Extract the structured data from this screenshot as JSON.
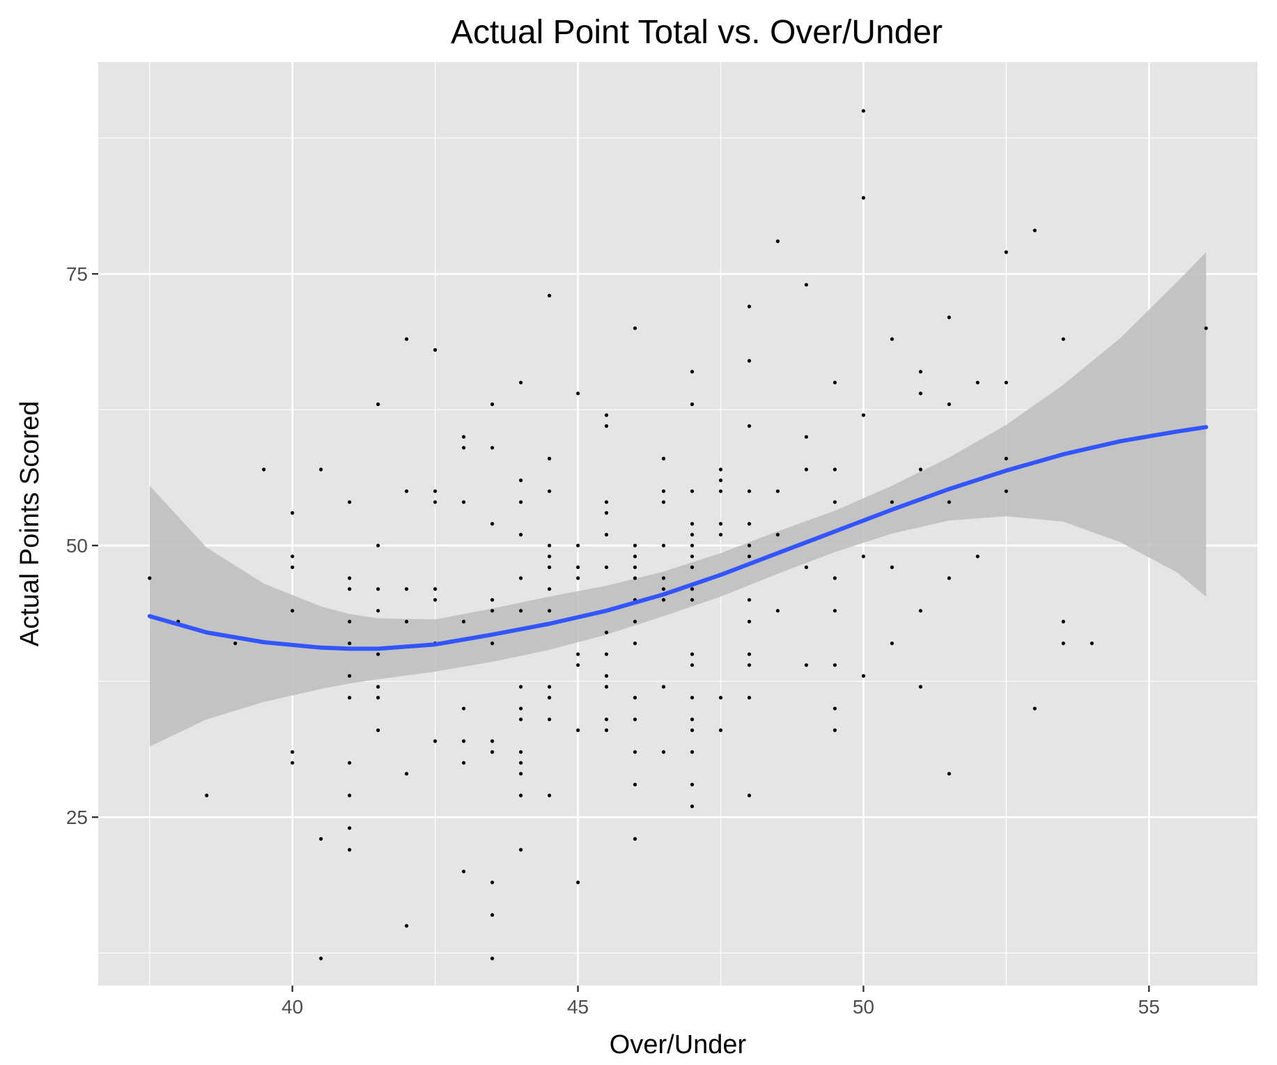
{
  "chart_data": {
    "type": "scatter",
    "title": "Actual Point Total vs. Over/Under",
    "xlabel": "Over/Under",
    "ylabel": "Actual Points Scored",
    "xlim": [
      36.6,
      56.9
    ],
    "ylim": [
      9.5,
      94.5
    ],
    "x_ticks": [
      40,
      45,
      50,
      55
    ],
    "y_ticks": [
      25,
      50,
      75
    ],
    "x_tick_labels": [
      "40",
      "45",
      "50",
      "55"
    ],
    "y_tick_labels": [
      "25",
      "50",
      "75"
    ],
    "x_minor_ticks": [
      37.5,
      42.5,
      47.5,
      52.5
    ],
    "y_minor_ticks": [
      12.5,
      37.5,
      62.5,
      87.5
    ],
    "grid": true,
    "colors": {
      "panel_background": "#e5e5e5",
      "grid": "#ffffff",
      "points": "#000000",
      "smooth_line": "#3355ff",
      "confidence_band": "#bdbdbd"
    },
    "points": [
      [
        37.5,
        47
      ],
      [
        38,
        43
      ],
      [
        38.5,
        27
      ],
      [
        39,
        41
      ],
      [
        39.5,
        57
      ],
      [
        40,
        53
      ],
      [
        40,
        49
      ],
      [
        40,
        48
      ],
      [
        40,
        44
      ],
      [
        40,
        31
      ],
      [
        40,
        30
      ],
      [
        40.5,
        57
      ],
      [
        40.5,
        23
      ],
      [
        40.5,
        12
      ],
      [
        41,
        54
      ],
      [
        41,
        47
      ],
      [
        41,
        46
      ],
      [
        41,
        43
      ],
      [
        41,
        41
      ],
      [
        41,
        38
      ],
      [
        41,
        36
      ],
      [
        41,
        30
      ],
      [
        41,
        27
      ],
      [
        41,
        24
      ],
      [
        41,
        22
      ],
      [
        41.5,
        63
      ],
      [
        41.5,
        50
      ],
      [
        41.5,
        46
      ],
      [
        41.5,
        44
      ],
      [
        41.5,
        40
      ],
      [
        41.5,
        37
      ],
      [
        41.5,
        36
      ],
      [
        41.5,
        33
      ],
      [
        42,
        69
      ],
      [
        42,
        55
      ],
      [
        42,
        46
      ],
      [
        42,
        43
      ],
      [
        42,
        29
      ],
      [
        42,
        15
      ],
      [
        42.5,
        68
      ],
      [
        42.5,
        55
      ],
      [
        42.5,
        54
      ],
      [
        42.5,
        46
      ],
      [
        42.5,
        45
      ],
      [
        42.5,
        41
      ],
      [
        42.5,
        32
      ],
      [
        43,
        60
      ],
      [
        43,
        59
      ],
      [
        43,
        54
      ],
      [
        43,
        43
      ],
      [
        43,
        35
      ],
      [
        43,
        32
      ],
      [
        43,
        30
      ],
      [
        43,
        20
      ],
      [
        43.5,
        63
      ],
      [
        43.5,
        59
      ],
      [
        43.5,
        52
      ],
      [
        43.5,
        45
      ],
      [
        43.5,
        44
      ],
      [
        43.5,
        41
      ],
      [
        43.5,
        32
      ],
      [
        43.5,
        31
      ],
      [
        43.5,
        19
      ],
      [
        43.5,
        16
      ],
      [
        43.5,
        12
      ],
      [
        44,
        65
      ],
      [
        44,
        56
      ],
      [
        44,
        54
      ],
      [
        44,
        51
      ],
      [
        44,
        47
      ],
      [
        44,
        44
      ],
      [
        44,
        37
      ],
      [
        44,
        35
      ],
      [
        44,
        34
      ],
      [
        44,
        31
      ],
      [
        44,
        30
      ],
      [
        44,
        29
      ],
      [
        44,
        27
      ],
      [
        44,
        22
      ],
      [
        44.5,
        73
      ],
      [
        44.5,
        58
      ],
      [
        44.5,
        55
      ],
      [
        44.5,
        50
      ],
      [
        44.5,
        49
      ],
      [
        44.5,
        48
      ],
      [
        44.5,
        46
      ],
      [
        44.5,
        44
      ],
      [
        44.5,
        37
      ],
      [
        44.5,
        36
      ],
      [
        44.5,
        34
      ],
      [
        44.5,
        27
      ],
      [
        45,
        64
      ],
      [
        45,
        50
      ],
      [
        45,
        48
      ],
      [
        45,
        47
      ],
      [
        45,
        40
      ],
      [
        45,
        39
      ],
      [
        45,
        33
      ],
      [
        45,
        19
      ],
      [
        45.5,
        62
      ],
      [
        45.5,
        61
      ],
      [
        45.5,
        54
      ],
      [
        45.5,
        53
      ],
      [
        45.5,
        51
      ],
      [
        45.5,
        48
      ],
      [
        45.5,
        42
      ],
      [
        45.5,
        40
      ],
      [
        45.5,
        38
      ],
      [
        45.5,
        37
      ],
      [
        45.5,
        34
      ],
      [
        45.5,
        33
      ],
      [
        46,
        70
      ],
      [
        46,
        50
      ],
      [
        46,
        49
      ],
      [
        46,
        48
      ],
      [
        46,
        47
      ],
      [
        46,
        45
      ],
      [
        46,
        43
      ],
      [
        46,
        41
      ],
      [
        46,
        36
      ],
      [
        46,
        34
      ],
      [
        46,
        31
      ],
      [
        46,
        28
      ],
      [
        46,
        23
      ],
      [
        46.5,
        58
      ],
      [
        46.5,
        55
      ],
      [
        46.5,
        54
      ],
      [
        46.5,
        50
      ],
      [
        46.5,
        47
      ],
      [
        46.5,
        46
      ],
      [
        46.5,
        45
      ],
      [
        46.5,
        37
      ],
      [
        46.5,
        31
      ],
      [
        47,
        66
      ],
      [
        47,
        63
      ],
      [
        47,
        55
      ],
      [
        47,
        52
      ],
      [
        47,
        51
      ],
      [
        47,
        50
      ],
      [
        47,
        49
      ],
      [
        47,
        48
      ],
      [
        47,
        46
      ],
      [
        47,
        45
      ],
      [
        47,
        40
      ],
      [
        47,
        39
      ],
      [
        47,
        36
      ],
      [
        47,
        34
      ],
      [
        47,
        33
      ],
      [
        47,
        31
      ],
      [
        47,
        28
      ],
      [
        47,
        26
      ],
      [
        47.5,
        57
      ],
      [
        47.5,
        56
      ],
      [
        47.5,
        55
      ],
      [
        47.5,
        52
      ],
      [
        47.5,
        51
      ],
      [
        47.5,
        36
      ],
      [
        47.5,
        33
      ],
      [
        48,
        72
      ],
      [
        48,
        67
      ],
      [
        48,
        61
      ],
      [
        48,
        55
      ],
      [
        48,
        52
      ],
      [
        48,
        50
      ],
      [
        48,
        49
      ],
      [
        48,
        45
      ],
      [
        48,
        43
      ],
      [
        48,
        40
      ],
      [
        48,
        39
      ],
      [
        48,
        36
      ],
      [
        48,
        27
      ],
      [
        48.5,
        78
      ],
      [
        48.5,
        55
      ],
      [
        48.5,
        51
      ],
      [
        48.5,
        44
      ],
      [
        49,
        74
      ],
      [
        49,
        60
      ],
      [
        49,
        57
      ],
      [
        49,
        48
      ],
      [
        49,
        39
      ],
      [
        49.5,
        65
      ],
      [
        49.5,
        57
      ],
      [
        49.5,
        54
      ],
      [
        49.5,
        47
      ],
      [
        49.5,
        44
      ],
      [
        49.5,
        39
      ],
      [
        49.5,
        35
      ],
      [
        49.5,
        33
      ],
      [
        50,
        90
      ],
      [
        50,
        82
      ],
      [
        50,
        62
      ],
      [
        50,
        49
      ],
      [
        50,
        38
      ],
      [
        50.5,
        69
      ],
      [
        50.5,
        54
      ],
      [
        50.5,
        48
      ],
      [
        50.5,
        41
      ],
      [
        51,
        66
      ],
      [
        51,
        64
      ],
      [
        51,
        57
      ],
      [
        51,
        44
      ],
      [
        51,
        37
      ],
      [
        51.5,
        71
      ],
      [
        51.5,
        63
      ],
      [
        51.5,
        54
      ],
      [
        51.5,
        47
      ],
      [
        51.5,
        29
      ],
      [
        52,
        65
      ],
      [
        52,
        49
      ],
      [
        52.5,
        77
      ],
      [
        52.5,
        65
      ],
      [
        52.5,
        58
      ],
      [
        52.5,
        55
      ],
      [
        53,
        79
      ],
      [
        53,
        35
      ],
      [
        53.5,
        69
      ],
      [
        53.5,
        43
      ],
      [
        53.5,
        41
      ],
      [
        54,
        41
      ],
      [
        56,
        70
      ]
    ],
    "smooth": {
      "x": [
        37.5,
        38.5,
        39.5,
        40.5,
        41.0,
        41.5,
        42.5,
        43.5,
        44.5,
        45.5,
        46.5,
        47.5,
        48.5,
        49.5,
        50.5,
        51.5,
        52.5,
        53.5,
        54.5,
        55.5,
        56.0
      ],
      "y": [
        43.5,
        42.0,
        41.1,
        40.6,
        40.5,
        40.5,
        40.9,
        41.8,
        42.8,
        44.0,
        45.5,
        47.3,
        49.3,
        51.3,
        53.3,
        55.2,
        56.9,
        58.4,
        59.6,
        60.5,
        60.9
      ],
      "lower": [
        31.5,
        34.0,
        35.6,
        36.8,
        37.3,
        37.7,
        38.4,
        39.3,
        40.4,
        41.8,
        43.5,
        45.3,
        47.4,
        49.4,
        51.1,
        52.3,
        52.7,
        52.2,
        50.3,
        47.5,
        45.3
      ],
      "upper": [
        55.5,
        49.8,
        46.5,
        44.4,
        43.7,
        43.3,
        43.2,
        44.2,
        45.3,
        46.3,
        47.6,
        49.3,
        51.3,
        53.2,
        55.5,
        58.1,
        61.1,
        64.8,
        69.1,
        74.3,
        77.0
      ]
    }
  }
}
